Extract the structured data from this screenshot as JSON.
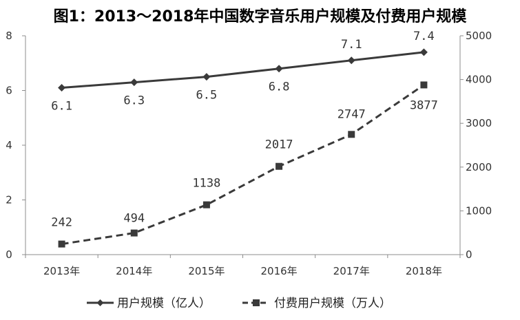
{
  "chart_data": {
    "type": "line",
    "title": "图1：2013～2018年中国数字音乐用户规模及付费用户规模",
    "categories": [
      "2013年",
      "2014年",
      "2015年",
      "2016年",
      "2017年",
      "2018年"
    ],
    "y_left": {
      "ylim": [
        0,
        8
      ],
      "ticks": [
        "0",
        "2",
        "4",
        "6",
        "8"
      ]
    },
    "y_right": {
      "ylim": [
        0,
        5000
      ],
      "ticks": [
        "0",
        "1000",
        "2000",
        "3000",
        "4000",
        "5000"
      ]
    },
    "series": [
      {
        "name": "用户规模（亿人）",
        "axis": "left",
        "line_style": "solid",
        "marker": "diamond",
        "color": "#3a3a3a",
        "values": [
          6.1,
          6.3,
          6.5,
          6.8,
          7.1,
          7.4
        ],
        "labels": [
          "6.1",
          "6.3",
          "6.5",
          "6.8",
          "7.1",
          "7.4"
        ]
      },
      {
        "name": "付费用户规模（万人）",
        "axis": "right",
        "line_style": "dashed",
        "marker": "square",
        "color": "#3a3a3a",
        "values": [
          242,
          494,
          1138,
          2017,
          2747,
          3877
        ],
        "labels": [
          "242",
          "494",
          "1138",
          "2017",
          "2747",
          "3877"
        ]
      }
    ],
    "legend_position": "bottom",
    "grid": false
  }
}
